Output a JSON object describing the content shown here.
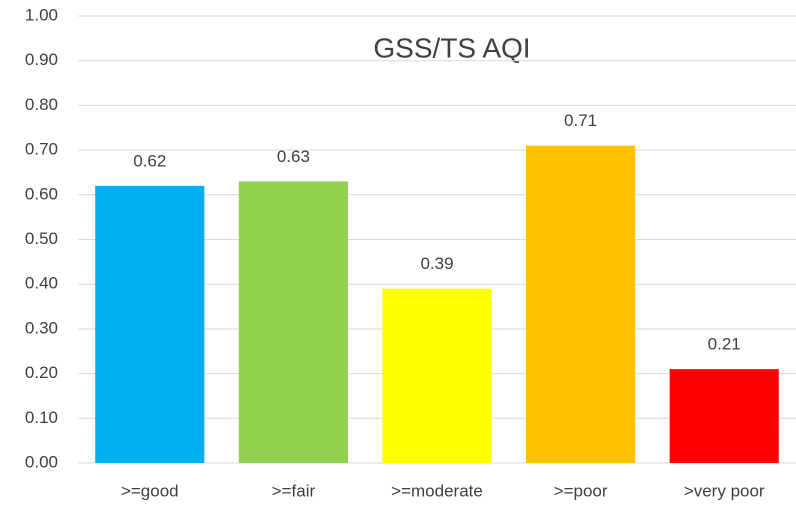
{
  "chart_data": {
    "type": "bar",
    "title": "GSS/TS AQI",
    "categories": [
      ">=good",
      ">=fair",
      ">=moderate",
      ">=poor",
      ">very poor"
    ],
    "values": [
      0.62,
      0.63,
      0.39,
      0.71,
      0.21
    ],
    "colors": [
      "#00b0f0",
      "#92d050",
      "#ffff00",
      "#ffc000",
      "#ff0000"
    ],
    "ylim": [
      0,
      1
    ],
    "yticks": [
      {
        "value": 0,
        "label": "0.00"
      },
      {
        "value": 0.1,
        "label": "0.10"
      },
      {
        "value": 0.2,
        "label": "0.20"
      },
      {
        "value": 0.3,
        "label": "0.30"
      },
      {
        "value": 0.4,
        "label": "0.40"
      },
      {
        "value": 0.5,
        "label": "0.50"
      },
      {
        "value": 0.6,
        "label": "0.60"
      },
      {
        "value": 0.7,
        "label": "0.70"
      },
      {
        "value": 0.8,
        "label": "0.80"
      },
      {
        "value": 0.9,
        "label": "0.90"
      },
      {
        "value": 1,
        "label": "1.00"
      }
    ],
    "grid": true
  }
}
